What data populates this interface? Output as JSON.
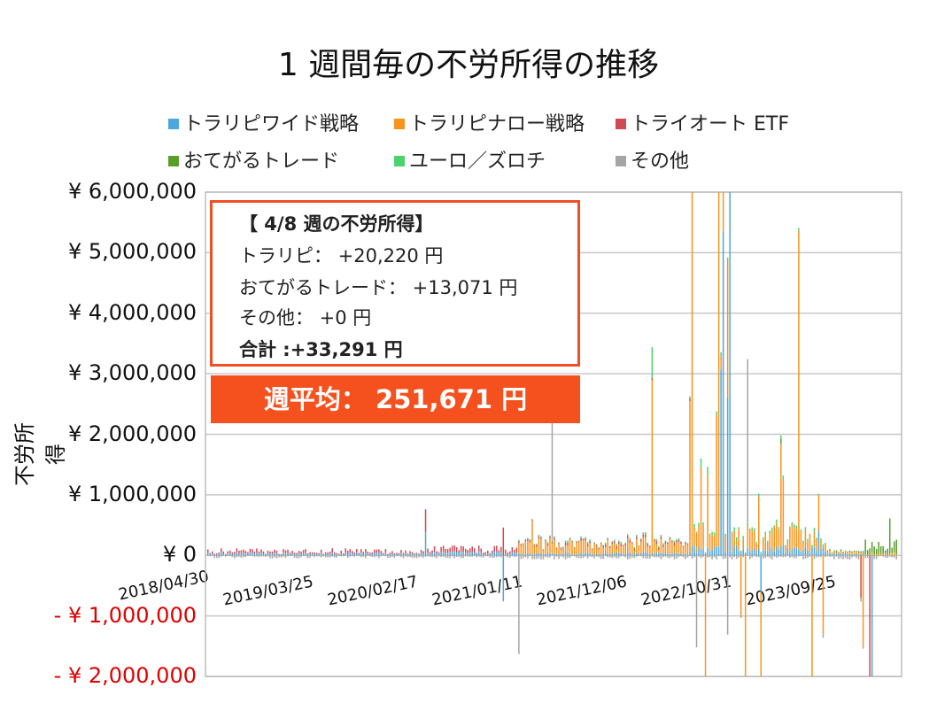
{
  "chart_data": {
    "type": "bar",
    "stacked": true,
    "title": "1 週間毎の不労所得の推移",
    "ylabel": "不労所得",
    "xlabel": "",
    "ylim": [
      -2000000,
      6000000
    ],
    "grid": true,
    "legend_position": "top",
    "weeks": {
      "first": "2018/04/30",
      "last": "2024/04/08",
      "interval_days": 7
    },
    "ytick_labels": [
      "¥ 6,000,000",
      "¥ 5,000,000",
      "¥ 4,000,000",
      "¥ 3,000,000",
      "¥ 2,000,000",
      "¥ 1,000,000",
      "¥ 0",
      "- ¥ 1,000,000",
      "- ¥ 2,000,000"
    ],
    "ytick_values": [
      6000000,
      5000000,
      4000000,
      3000000,
      2000000,
      1000000,
      0,
      -1000000,
      -2000000
    ],
    "xtick_labels": [
      "2018/04/30",
      "2019/03/25",
      "2020/02/17",
      "2021/01/11",
      "2021/12/06",
      "2022/10/31",
      "2023/09/25"
    ],
    "series": [
      {
        "key": "wide",
        "name": "トラリピワイド戦略",
        "color": "#4ea6dc"
      },
      {
        "key": "narrow",
        "name": "トラリピナロー戦略",
        "color": "#f7941d"
      },
      {
        "key": "auto",
        "name": "トライオート ETF",
        "color": "#d04a54"
      },
      {
        "key": "otegaru",
        "name": "おてがるトレード",
        "color": "#5a9e2a"
      },
      {
        "key": "euro",
        "name": "ユーロ／ズロチ",
        "color": "#4cd36e"
      },
      {
        "key": "other",
        "name": "その他",
        "color": "#a5a5a5"
      }
    ],
    "typical_weekly": [
      {
        "from": "2018/04/30",
        "to": "2020/03/09",
        "values": {
          "wide": 30000,
          "auto": 40000,
          "other": -30000
        }
      },
      {
        "from": "2020/03/16",
        "to": "2020/12/28",
        "values": {
          "wide": 40000,
          "auto": 60000,
          "other": -30000
        }
      },
      {
        "from": "2021/01/04",
        "to": "2022/06/27",
        "values": {
          "wide": 30000,
          "narrow": 150000,
          "auto": 30000,
          "euro": 20000,
          "other": -40000
        }
      },
      {
        "from": "2022/07/04",
        "to": "2023/08/28",
        "values": {
          "wide": 100000,
          "narrow": 250000,
          "euro": 40000,
          "other": -40000
        }
      },
      {
        "from": "2023/09/04",
        "to": "2023/12/25",
        "values": {
          "wide": 30000,
          "narrow": 40000,
          "otegaru": 20000,
          "other": -40000
        }
      },
      {
        "from": "2024/01/01",
        "to": "2024/04/08",
        "values": {
          "otegaru": 150000,
          "narrow": 30000,
          "other": -40000
        }
      }
    ],
    "notable_weeks": [
      {
        "date": "2020/03/16",
        "values": {
          "wide": 390000,
          "auto": 370000
        }
      },
      {
        "date": "2020/11/16",
        "values": {
          "wide": -750000,
          "auto": 460000
        }
      },
      {
        "date": "2021/01/04",
        "values": {
          "other": -1630000
        }
      },
      {
        "date": "2021/02/15",
        "values": {
          "narrow": 560000
        }
      },
      {
        "date": "2021/04/19",
        "values": {
          "other": 2200000
        }
      },
      {
        "date": "2022/02/28",
        "values": {
          "narrow": 2860000,
          "euro": 500000
        }
      },
      {
        "date": "2022/07/04",
        "values": {
          "narrow": 6200000
        }
      },
      {
        "date": "2022/06/27",
        "values": {
          "narrow": 2500000
        }
      },
      {
        "date": "2022/07/18",
        "values": {
          "other": -1520000
        }
      },
      {
        "date": "2022/08/01",
        "values": {
          "narrow": 1350000,
          "euro": 150000
        }
      },
      {
        "date": "2022/08/15",
        "values": {
          "narrow": -2200000
        }
      },
      {
        "date": "2022/08/22",
        "values": {
          "narrow": 1200000,
          "euro": 140000
        }
      },
      {
        "date": "2022/09/19",
        "values": {
          "narrow": 2180000
        }
      },
      {
        "date": "2022/09/26",
        "values": {
          "narrow": 5920000
        }
      },
      {
        "date": "2022/10/03",
        "values": {
          "wide": 3070000,
          "narrow": 230000
        }
      },
      {
        "date": "2022/10/10",
        "values": {
          "wide": 5350000,
          "narrow": 900000
        }
      },
      {
        "date": "2022/10/24",
        "values": {
          "wide": 2600000,
          "narrow": 2300000,
          "other": -1310000
        }
      },
      {
        "date": "2022/10/31",
        "values": {
          "wide": 6200000
        }
      },
      {
        "date": "2022/12/05",
        "values": {
          "narrow": -1000000
        }
      },
      {
        "date": "2022/12/19",
        "values": {
          "narrow": -2200000
        }
      },
      {
        "date": "2022/12/26",
        "values": {
          "other": 2700000
        }
      },
      {
        "date": "2023/01/30",
        "values": {
          "narrow": 850000
        }
      },
      {
        "date": "2023/02/06",
        "values": {
          "wide": -600000,
          "narrow": -2200000
        }
      },
      {
        "date": "2023/04/10",
        "values": {
          "narrow": 1700000,
          "otegaru": 80000
        }
      },
      {
        "date": "2023/04/17",
        "values": {
          "narrow": 1090000
        }
      },
      {
        "date": "2023/06/05",
        "values": {
          "narrow": 5270000
        }
      },
      {
        "date": "2023/07/17",
        "values": {
          "narrow": -2200000
        }
      },
      {
        "date": "2023/08/07",
        "values": {
          "wide": 400000,
          "narrow": 600000
        }
      },
      {
        "date": "2023/08/21",
        "values": {
          "narrow": -1300000
        }
      },
      {
        "date": "2023/12/18",
        "values": {
          "auto": -700000
        }
      },
      {
        "date": "2023/12/25",
        "values": {
          "narrow": -1500000
        }
      },
      {
        "date": "2024/01/15",
        "values": {
          "auto": -2200000
        }
      },
      {
        "date": "2024/01/22",
        "values": {
          "wide": -2200000
        }
      },
      {
        "date": "2024/03/18",
        "values": {
          "otegaru": 580000
        }
      }
    ]
  },
  "note": {
    "heading": "【 4/8 週の不労所得】",
    "line1": "トラリピ： +20,220 円",
    "line2": "おてがるトレード： +13,071 円",
    "line3": "その他： +0 円",
    "total": "合計 :+33,291 円"
  },
  "average": "週平均： 251,671 円"
}
